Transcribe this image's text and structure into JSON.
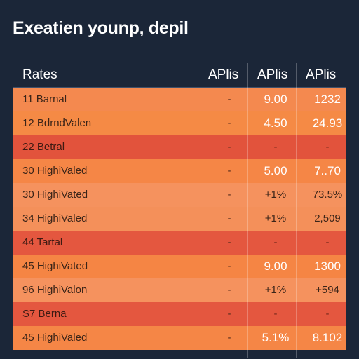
{
  "title": "Exeatien younp, depil",
  "table": {
    "headers": [
      "Rates",
      "APlis",
      "APlis",
      "APlis"
    ],
    "rows": [
      {
        "label": "11 Barnal",
        "a": "-",
        "b": "9.00",
        "c": "1232",
        "tone": "orange",
        "color": "#f4894f"
      },
      {
        "label": "12 BdrndValen",
        "a": "-",
        "b": "4.50",
        "c": "24.93",
        "tone": "orange",
        "color": "#f58a45"
      },
      {
        "label": "22 Betral",
        "a": "-",
        "b": "-",
        "c": "-",
        "tone": "red",
        "color": "#e2533c"
      },
      {
        "label": "30 HighiValed",
        "a": "-",
        "b": "5.00",
        "c": "7..70",
        "tone": "orange",
        "color": "#f58646"
      },
      {
        "label": "30 HighiVated",
        "a": "-",
        "b": "+1%",
        "c": "73.5%",
        "tone": "light",
        "color": "#f5925e"
      },
      {
        "label": "34 HighiValed",
        "a": "-",
        "b": "+1%",
        "c": "2,509",
        "tone": "light",
        "color": "#f4905a"
      },
      {
        "label": "44 Tartal",
        "a": "-",
        "b": "-",
        "c": "-",
        "tone": "red",
        "color": "#e4573f"
      },
      {
        "label": "45 HighiVated",
        "a": "-",
        "b": "9.00",
        "c": "1300",
        "tone": "orange",
        "color": "#f58544"
      },
      {
        "label": "96 HighiValon",
        "a": "-",
        "b": "+1%",
        "c": "+594",
        "tone": "light",
        "color": "#f5925e"
      },
      {
        "label": "S7 Berna",
        "a": "-",
        "b": "-",
        "c": "-",
        "tone": "red",
        "color": "#e4573f"
      },
      {
        "label": "45 HighiValed",
        "a": "-",
        "b": "5.1%",
        "c": "8.102",
        "tone": "orange",
        "color": "#f58646"
      }
    ]
  }
}
